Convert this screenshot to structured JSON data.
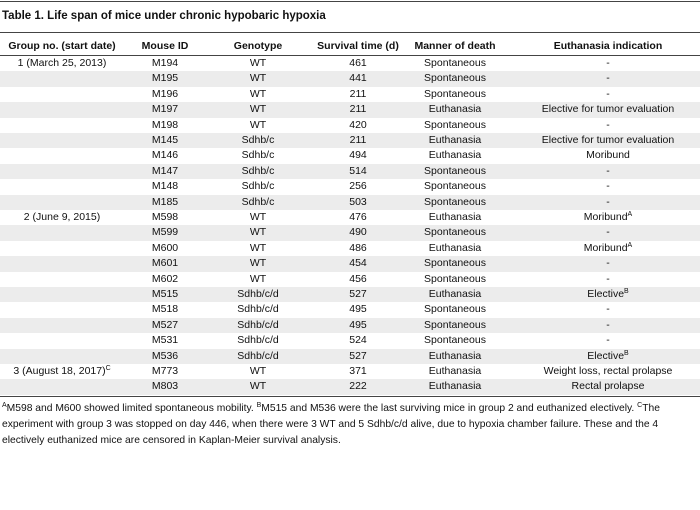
{
  "table": {
    "title": "Table 1. Life span of mice under chronic hypobaric hypoxia",
    "columns": [
      "Group no. (start date)",
      "Mouse ID",
      "Genotype",
      "Survival time (d)",
      "Manner of death",
      "Euthanasia indication"
    ],
    "rows": [
      {
        "group": {
          "text": "1 (March 25, 2013)"
        },
        "cells": [
          "M194",
          "WT",
          "461",
          "Spontaneous",
          {
            "text": "-"
          }
        ]
      },
      {
        "cells": [
          "M195",
          "WT",
          "441",
          "Spontaneous",
          {
            "text": "-"
          }
        ]
      },
      {
        "cells": [
          "M196",
          "WT",
          "211",
          "Spontaneous",
          {
            "text": "-"
          }
        ]
      },
      {
        "cells": [
          "M197",
          "WT",
          "211",
          "Euthanasia",
          {
            "text": "Elective for tumor evaluation"
          }
        ]
      },
      {
        "cells": [
          "M198",
          "WT",
          "420",
          "Spontaneous",
          {
            "text": "-"
          }
        ]
      },
      {
        "cells": [
          "M145",
          "Sdhb/c",
          "211",
          "Euthanasia",
          {
            "text": "Elective for tumor evaluation"
          }
        ]
      },
      {
        "cells": [
          "M146",
          "Sdhb/c",
          "494",
          "Euthanasia",
          {
            "text": "Moribund"
          }
        ]
      },
      {
        "cells": [
          "M147",
          "Sdhb/c",
          "514",
          "Spontaneous",
          {
            "text": "-"
          }
        ]
      },
      {
        "cells": [
          "M148",
          "Sdhb/c",
          "256",
          "Spontaneous",
          {
            "text": "-"
          }
        ]
      },
      {
        "cells": [
          "M185",
          "Sdhb/c",
          "503",
          "Spontaneous",
          {
            "text": "-"
          }
        ]
      },
      {
        "group": {
          "text": "2 (June 9, 2015)"
        },
        "cells": [
          "M598",
          "WT",
          "476",
          "Euthanasia",
          {
            "text": "Moribund",
            "sup": "A"
          }
        ]
      },
      {
        "cells": [
          "M599",
          "WT",
          "490",
          "Spontaneous",
          {
            "text": "-"
          }
        ]
      },
      {
        "cells": [
          "M600",
          "WT",
          "486",
          "Euthanasia",
          {
            "text": "Moribund",
            "sup": "A"
          }
        ]
      },
      {
        "cells": [
          "M601",
          "WT",
          "454",
          "Spontaneous",
          {
            "text": "-"
          }
        ]
      },
      {
        "cells": [
          "M602",
          "WT",
          "456",
          "Spontaneous",
          {
            "text": "-"
          }
        ]
      },
      {
        "cells": [
          "M515",
          "Sdhb/c/d",
          "527",
          "Euthanasia",
          {
            "text": "Elective",
            "sup": "B"
          }
        ]
      },
      {
        "cells": [
          "M518",
          "Sdhb/c/d",
          "495",
          "Spontaneous",
          {
            "text": "-"
          }
        ]
      },
      {
        "cells": [
          "M527",
          "Sdhb/c/d",
          "495",
          "Spontaneous",
          {
            "text": "-"
          }
        ]
      },
      {
        "cells": [
          "M531",
          "Sdhb/c/d",
          "524",
          "Spontaneous",
          {
            "text": "-"
          }
        ]
      },
      {
        "cells": [
          "M536",
          "Sdhb/c/d",
          "527",
          "Euthanasia",
          {
            "text": "Elective",
            "sup": "B"
          }
        ]
      },
      {
        "group": {
          "text": "3 (August 18, 2017)",
          "sup": "C"
        },
        "cells": [
          "M773",
          "WT",
          "371",
          "Euthanasia",
          {
            "text": "Weight loss, rectal prolapse"
          }
        ]
      },
      {
        "cells": [
          "M803",
          "WT",
          "222",
          "Euthanasia",
          {
            "text": "Rectal prolapse"
          }
        ]
      }
    ],
    "footnotes": [
      {
        "sup": "A",
        "text": "M598 and M600 showed limited spontaneous mobility. "
      },
      {
        "sup": "B",
        "text": "M515 and M536 were the last surviving mice in group 2 and euthanized electively. "
      },
      {
        "sup": "C",
        "text": "The experiment with group 3 was stopped on day 446, when there were 3 WT and 5 Sdhb/c/d alive, due to hypoxia chamber failure. These and the 4 electively euthanized mice are censored in Kaplan-Meier survival analysis."
      }
    ]
  }
}
